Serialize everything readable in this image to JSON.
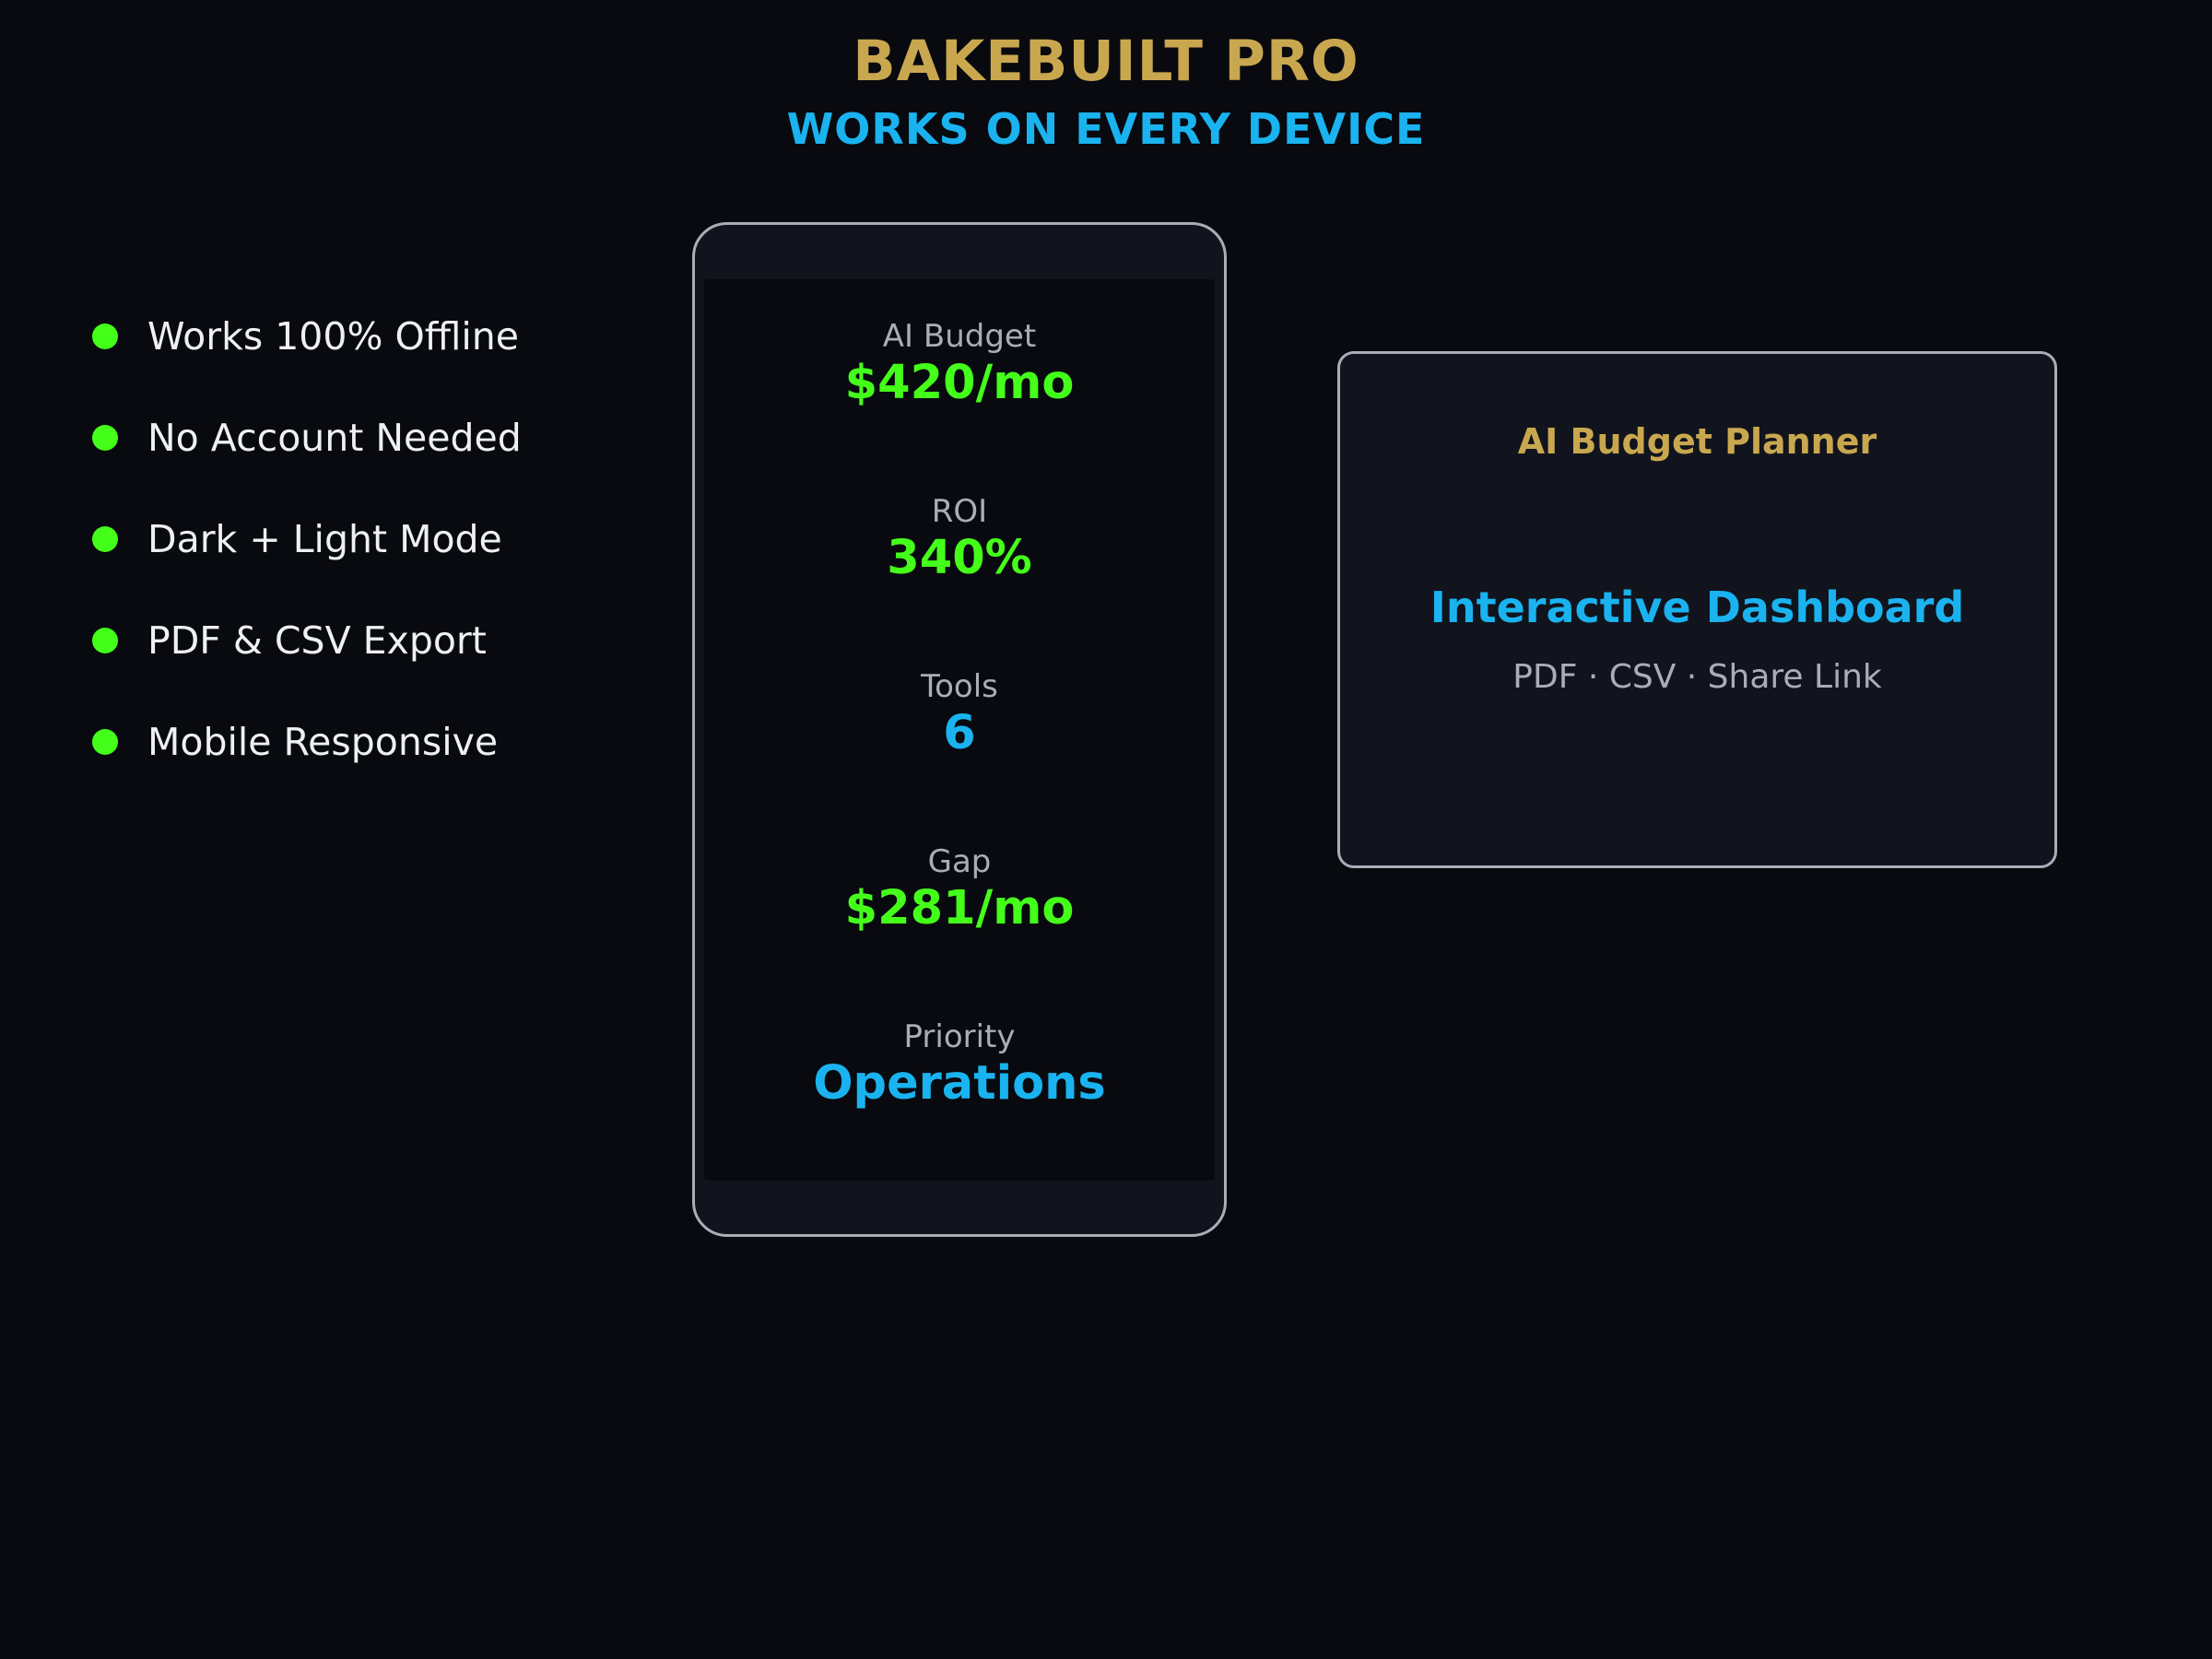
{
  "colors": {
    "background": "#080a0f",
    "panel": "#11141d",
    "gold": "#c9a74f",
    "blue": "#1ab3f0",
    "green": "#44ff1a",
    "muted": "#a9adb8",
    "white": "#eef0f3"
  },
  "header": {
    "title": "BAKEBUILT PRO",
    "subtitle": "WORKS ON EVERY DEVICE"
  },
  "features": [
    {
      "label": "Works 100% Offline",
      "icon": "bullet-dot"
    },
    {
      "label": "No Account Needed",
      "icon": "bullet-dot"
    },
    {
      "label": "Dark + Light Mode",
      "icon": "bullet-dot"
    },
    {
      "label": "PDF & CSV Export",
      "icon": "bullet-dot"
    },
    {
      "label": "Mobile Responsive",
      "icon": "bullet-dot"
    }
  ],
  "phone": {
    "stats": [
      {
        "label": "AI Budget",
        "value": "$420/mo",
        "color": "green"
      },
      {
        "label": "ROI",
        "value": "340%",
        "color": "green"
      },
      {
        "label": "Tools",
        "value": "6",
        "color": "blue"
      },
      {
        "label": "Gap",
        "value": "$281/mo",
        "color": "green"
      },
      {
        "label": "Priority",
        "value": "Operations",
        "color": "blue"
      }
    ]
  },
  "dashboard_card": {
    "title": "AI Budget Planner",
    "heading": "Interactive Dashboard",
    "subtext": "PDF · CSV · Share Link"
  }
}
